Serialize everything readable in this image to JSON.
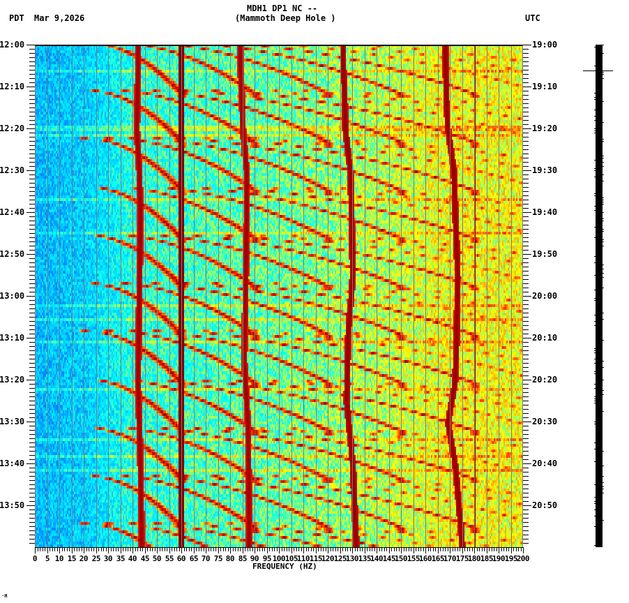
{
  "header": {
    "station_line": "MDH1 DP1 NC --",
    "station_name": "(Mammoth Deep Hole )",
    "left_timezone": "PDT",
    "date": "Mar 9,2026",
    "right_timezone": "UTC"
  },
  "footer": {
    "corner_mark": "·H"
  },
  "colors": {
    "background": "#ffffff",
    "axis": "#000000",
    "grid_line": "#7a7a7a",
    "colormap": [
      "#0050ff",
      "#0090ff",
      "#00d0ff",
      "#00ffff",
      "#80ff80",
      "#ffff00",
      "#ffa000",
      "#ff3000",
      "#b00000",
      "#800000"
    ]
  },
  "chart_data": {
    "type": "heatmap",
    "title": "MDH1 DP1 NC -- (Mammoth Deep Hole ) spectrogram",
    "xlabel": "FREQUENCY (HZ)",
    "ylabel_left": "PDT",
    "ylabel_right": "UTC",
    "xlim": [
      0,
      200
    ],
    "x_ticks": [
      0,
      5,
      10,
      15,
      20,
      25,
      30,
      35,
      40,
      45,
      50,
      55,
      60,
      65,
      70,
      75,
      80,
      85,
      90,
      95,
      100,
      105,
      110,
      115,
      120,
      125,
      130,
      135,
      140,
      145,
      150,
      155,
      160,
      165,
      170,
      175,
      180,
      185,
      190,
      195,
      200
    ],
    "x_minor_tick_step": 1,
    "y_ticks_left": [
      "12:00",
      "12:10",
      "12:20",
      "12:30",
      "12:40",
      "12:50",
      "13:00",
      "13:10",
      "13:20",
      "13:30",
      "13:40",
      "13:50"
    ],
    "y_ticks_right": [
      "19:00",
      "19:10",
      "19:20",
      "19:30",
      "19:40",
      "19:50",
      "20:00",
      "20:10",
      "20:20",
      "20:30",
      "20:40",
      "20:50"
    ],
    "y_minutes_span": 120,
    "y_minor_tick_step_min": 1,
    "grid": "vertical gridlines every 5 Hz",
    "background_level_by_freq": [
      {
        "hz": 0,
        "level": 0.18
      },
      {
        "hz": 20,
        "level": 0.22
      },
      {
        "hz": 40,
        "level": 0.35
      },
      {
        "hz": 60,
        "level": 0.38
      },
      {
        "hz": 100,
        "level": 0.42
      },
      {
        "hz": 140,
        "level": 0.48
      },
      {
        "hz": 170,
        "level": 0.55
      },
      {
        "hz": 200,
        "level": 0.55
      }
    ],
    "constant_lines": [
      {
        "name": "60 Hz powerline",
        "hz": 59.8,
        "width_hz": 1.2,
        "level": 1.0
      },
      {
        "name": "180 Hz line",
        "hz": 180.0,
        "width_hz": 0.4,
        "level": 0.95
      }
    ],
    "wandering_lines": [
      {
        "name": "~43 Hz tone",
        "points": [
          [
            5,
            42.0
          ],
          [
            20,
            41.5
          ],
          [
            30,
            42.5
          ],
          [
            40,
            43.0
          ],
          [
            60,
            42.5
          ],
          [
            80,
            42.0
          ],
          [
            100,
            43.0
          ],
          [
            120,
            43.5
          ]
        ],
        "level": 0.95
      },
      {
        "name": "~86 Hz tone",
        "points": [
          [
            5,
            84.0
          ],
          [
            20,
            85.0
          ],
          [
            30,
            86.5
          ],
          [
            40,
            86.5
          ],
          [
            60,
            86.0
          ],
          [
            75,
            85.5
          ],
          [
            90,
            87.0
          ],
          [
            110,
            87.5
          ],
          [
            120,
            87.5
          ]
        ],
        "level": 0.95
      },
      {
        "name": "~129 Hz tone",
        "points": [
          [
            4,
            126.0
          ],
          [
            10,
            126.5
          ],
          [
            20,
            127.0
          ],
          [
            30,
            129.0
          ],
          [
            40,
            129.5
          ],
          [
            55,
            130.0
          ],
          [
            70,
            128.0
          ],
          [
            85,
            127.5
          ],
          [
            100,
            130.0
          ],
          [
            120,
            131.5
          ]
        ],
        "level": 0.97
      },
      {
        "name": "~172 Hz tone",
        "points": [
          [
            4,
            168.0
          ],
          [
            15,
            168.5
          ],
          [
            20,
            169.0
          ],
          [
            30,
            171.5
          ],
          [
            40,
            172.0
          ],
          [
            55,
            173.0
          ],
          [
            70,
            172.5
          ],
          [
            80,
            172.0
          ],
          [
            90,
            169.0
          ],
          [
            100,
            172.0
          ],
          [
            120,
            175.0
          ]
        ],
        "level": 0.97
      }
    ],
    "sweep_harmonics": {
      "description": "repeating upward-curving frequency sweeps every ~11.5 minutes",
      "cycle_starts_min": [
        0,
        11.5,
        23,
        34.5,
        46,
        57.5,
        69,
        80.5,
        92,
        103.5,
        115
      ],
      "cycle_length_min": 11.5,
      "fundamental_start_hz": 20,
      "fundamental_end_hz": 60,
      "harmonic_count": 8,
      "level": 0.9
    }
  },
  "seismic_trace": {
    "marker_label": "event marker"
  }
}
